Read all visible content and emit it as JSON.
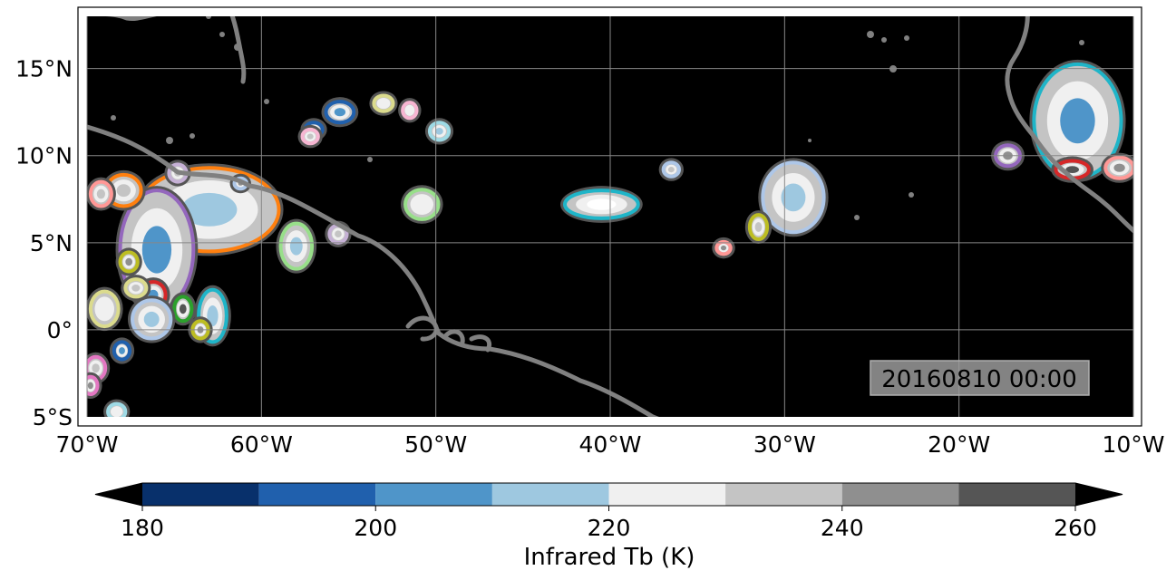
{
  "map": {
    "projection": "PlateCarree",
    "lon_range": [
      -70,
      -10
    ],
    "lat_range": [
      -5,
      18
    ],
    "x_ticks": [
      {
        "value": -70,
        "label": "70°W"
      },
      {
        "value": -60,
        "label": "60°W"
      },
      {
        "value": -50,
        "label": "50°W"
      },
      {
        "value": -40,
        "label": "40°W"
      },
      {
        "value": -30,
        "label": "30°W"
      },
      {
        "value": -20,
        "label": "20°W"
      },
      {
        "value": -10,
        "label": "10°W"
      }
    ],
    "y_ticks": [
      {
        "value": 15,
        "label": "15°N"
      },
      {
        "value": 10,
        "label": "10°N"
      },
      {
        "value": 5,
        "label": "5°N"
      },
      {
        "value": 0,
        "label": "0°"
      },
      {
        "value": -5,
        "label": "5°S"
      }
    ],
    "gridlines": true,
    "background_color": "#000000",
    "coastline_color": "#808080",
    "timestamp": "20160810 00:00",
    "timestamp_position": "bottom-right"
  },
  "colorbar": {
    "label": "Infrared Tb (K)",
    "range": [
      180,
      260
    ],
    "extend": "both",
    "bins": [
      {
        "from": 180,
        "to": 190,
        "color": "#08306b"
      },
      {
        "from": 190,
        "to": 200,
        "color": "#2060ad"
      },
      {
        "from": 200,
        "to": 210,
        "color": "#4f95c9"
      },
      {
        "from": 210,
        "to": 220,
        "color": "#9ec8e0"
      },
      {
        "from": 220,
        "to": 230,
        "color": "#f0f0f0"
      },
      {
        "from": 230,
        "to": 240,
        "color": "#c4c4c4"
      },
      {
        "from": 240,
        "to": 250,
        "color": "#8f8f8f"
      },
      {
        "from": 250,
        "to": 260,
        "color": "#555555"
      }
    ],
    "under_color": "#000000",
    "over_color": "#000000",
    "ticks": [
      {
        "value": 180,
        "label": "180"
      },
      {
        "value": 200,
        "label": "200"
      },
      {
        "value": 220,
        "label": "220"
      },
      {
        "value": 240,
        "label": "240"
      },
      {
        "value": 260,
        "label": "260"
      }
    ]
  },
  "cloud_systems": [
    {
      "lon": -40.5,
      "lat": 7.2,
      "w": 4.2,
      "h": 1.6,
      "outline": "#1fb5c8",
      "core": "#ffffff"
    },
    {
      "lon": -29.5,
      "lat": 7.6,
      "w": 3.5,
      "h": 4.0,
      "outline": "#aec7e8",
      "core": "#9ec8e0"
    },
    {
      "lon": -31.5,
      "lat": 5.9,
      "w": 1.0,
      "h": 1.4,
      "outline": "#bcbd22",
      "core": "#c4c4c4"
    },
    {
      "lon": -13.2,
      "lat": 12.0,
      "w": 5.0,
      "h": 6.5,
      "outline": "#1fb5c8",
      "core": "#4f95c9"
    },
    {
      "lon": -13.5,
      "lat": 9.2,
      "w": 1.9,
      "h": 1.0,
      "outline": "#d62728",
      "core": "#555555"
    },
    {
      "lon": -17.2,
      "lat": 10.0,
      "w": 1.4,
      "h": 1.2,
      "outline": "#9467bd",
      "core": "#8f8f8f"
    },
    {
      "lon": -10.8,
      "lat": 9.3,
      "w": 1.6,
      "h": 1.2,
      "outline": "#ff9896",
      "core": "#8f8f8f"
    },
    {
      "lon": -63.0,
      "lat": 6.9,
      "w": 8.0,
      "h": 4.8,
      "outline": "#ff7f0e",
      "core": "#9ec8e0"
    },
    {
      "lon": -66.0,
      "lat": 4.6,
      "w": 4.2,
      "h": 6.8,
      "outline": "#9467bd",
      "core": "#4f95c9"
    },
    {
      "lon": -58.0,
      "lat": 4.8,
      "w": 1.8,
      "h": 2.6,
      "outline": "#98df8a",
      "core": "#9ec8e0"
    },
    {
      "lon": -50.8,
      "lat": 7.2,
      "w": 1.9,
      "h": 1.7,
      "outline": "#98df8a",
      "core": "#f0f0f0"
    },
    {
      "lon": -55.5,
      "lat": 12.5,
      "w": 1.6,
      "h": 1.2,
      "outline": "#2060ad",
      "core": "#4f95c9"
    },
    {
      "lon": -53.0,
      "lat": 13.0,
      "w": 1.1,
      "h": 0.9,
      "outline": "#dbdb8d",
      "core": "#f0f0f0"
    },
    {
      "lon": -51.5,
      "lat": 12.6,
      "w": 0.8,
      "h": 0.9,
      "outline": "#f7b6d2",
      "core": "#f0f0f0"
    },
    {
      "lon": -49.8,
      "lat": 11.4,
      "w": 1.1,
      "h": 1.0,
      "outline": "#9edae5",
      "core": "#9ec8e0"
    },
    {
      "lon": -57.0,
      "lat": 11.5,
      "w": 1.0,
      "h": 0.8,
      "outline": "#2060ad",
      "core": "#8f8f8f"
    },
    {
      "lon": -57.2,
      "lat": 11.1,
      "w": 0.9,
      "h": 0.8,
      "outline": "#f7b6d2",
      "core": "#c4c4c4"
    },
    {
      "lon": -64.8,
      "lat": 9.0,
      "w": 1.0,
      "h": 1.0,
      "outline": "#c5b0d5",
      "core": "#c4c4c4"
    },
    {
      "lon": -61.2,
      "lat": 8.4,
      "w": 0.7,
      "h": 0.6,
      "outline": "#aec7e8",
      "core": "#8f8f8f"
    },
    {
      "lon": -55.6,
      "lat": 5.5,
      "w": 1.0,
      "h": 1.0,
      "outline": "#c5b0d5",
      "core": "#c4c4c4"
    },
    {
      "lon": -67.9,
      "lat": 8.0,
      "w": 2.0,
      "h": 1.8,
      "outline": "#ff7f0e",
      "core": "#c4c4c4"
    },
    {
      "lon": -69.2,
      "lat": 7.8,
      "w": 1.2,
      "h": 1.4,
      "outline": "#ff9896",
      "core": "#c4c4c4"
    },
    {
      "lon": -66.2,
      "lat": 2.0,
      "w": 1.4,
      "h": 1.5,
      "outline": "#d62728",
      "core": "#4f95c9"
    },
    {
      "lon": -67.2,
      "lat": 2.4,
      "w": 1.2,
      "h": 1.0,
      "outline": "#dbdb8d",
      "core": "#c4c4c4"
    },
    {
      "lon": -67.6,
      "lat": 3.9,
      "w": 1.0,
      "h": 1.1,
      "outline": "#bcbd22",
      "core": "#8f8f8f"
    },
    {
      "lon": -64.5,
      "lat": 1.2,
      "w": 1.0,
      "h": 1.4,
      "outline": "#2ca02c",
      "core": "#555555"
    },
    {
      "lon": -62.8,
      "lat": 0.8,
      "w": 1.6,
      "h": 3.0,
      "outline": "#1fb5c8",
      "core": "#9ec8e0"
    },
    {
      "lon": -63.5,
      "lat": 0.0,
      "w": 0.9,
      "h": 1.0,
      "outline": "#bcbd22",
      "core": "#8f8f8f"
    },
    {
      "lon": -66.3,
      "lat": 0.6,
      "w": 2.2,
      "h": 2.2,
      "outline": "#aec7e8",
      "core": "#9ec8e0"
    },
    {
      "lon": -69.0,
      "lat": 1.2,
      "w": 1.6,
      "h": 2.0,
      "outline": "#dbdb8d",
      "core": "#f0f0f0"
    },
    {
      "lon": -68.0,
      "lat": -1.2,
      "w": 0.9,
      "h": 1.0,
      "outline": "#2060ad",
      "core": "#4f95c9"
    },
    {
      "lon": -69.5,
      "lat": -2.2,
      "w": 1.1,
      "h": 1.3,
      "outline": "#e377c2",
      "core": "#c4c4c4"
    },
    {
      "lon": -69.8,
      "lat": -3.2,
      "w": 0.8,
      "h": 1.0,
      "outline": "#e377c2",
      "core": "#8f8f8f"
    },
    {
      "lon": -68.3,
      "lat": -4.7,
      "w": 1.0,
      "h": 0.9,
      "outline": "#9edae5",
      "core": "#f0f0f0"
    },
    {
      "lon": -36.5,
      "lat": 9.2,
      "w": 0.9,
      "h": 0.8,
      "outline": "#aec7e8",
      "core": "#c4c4c4"
    },
    {
      "lon": -33.5,
      "lat": 4.7,
      "w": 0.8,
      "h": 0.7,
      "outline": "#ff9896",
      "core": "#8f8f8f"
    }
  ]
}
